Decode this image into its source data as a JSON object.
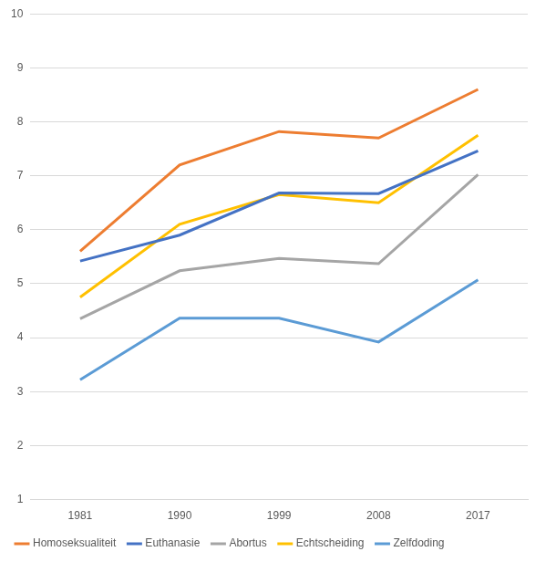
{
  "chart_data": {
    "type": "line",
    "categories": [
      "1981",
      "1990",
      "1999",
      "2008",
      "2017"
    ],
    "series": [
      {
        "name": "Homoseksualiteit",
        "color": "#ed7d31",
        "values": [
          5.6,
          7.2,
          7.82,
          7.7,
          8.6
        ]
      },
      {
        "name": "Euthanasie",
        "color": "#4472c4",
        "values": [
          5.42,
          5.9,
          6.68,
          6.67,
          7.46
        ]
      },
      {
        "name": "Abortus",
        "color": "#a5a5a5",
        "values": [
          4.35,
          5.24,
          5.47,
          5.37,
          7.02
        ]
      },
      {
        "name": "Echtscheiding",
        "color": "#ffc000",
        "values": [
          4.75,
          6.1,
          6.65,
          6.5,
          7.75
        ]
      },
      {
        "name": "Zelfdoding",
        "color": "#5b9bd5",
        "values": [
          3.22,
          4.36,
          4.36,
          3.92,
          5.07
        ]
      }
    ],
    "ylim": [
      1,
      10
    ],
    "yticks": [
      1,
      2,
      3,
      4,
      5,
      6,
      7,
      8,
      9,
      10
    ],
    "grid": true,
    "legend": "bottom"
  }
}
